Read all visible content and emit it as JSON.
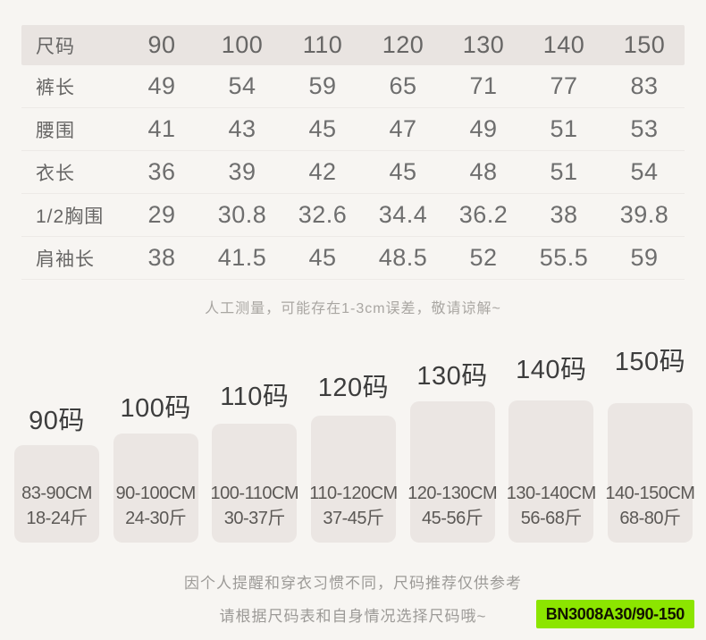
{
  "colors": {
    "page_background": "#f7f5f2",
    "table_header_background": "#e9e4e1",
    "size_block_background": "#ebe6e3",
    "badge_green": "#8ce500"
  },
  "size_table": {
    "header": {
      "label": "尺码",
      "sizes": [
        "90",
        "100",
        "110",
        "120",
        "130",
        "140",
        "150"
      ]
    },
    "rows": [
      {
        "label": "裤长",
        "values": [
          "49",
          "54",
          "59",
          "65",
          "71",
          "77",
          "83"
        ]
      },
      {
        "label": "腰围",
        "values": [
          "41",
          "43",
          "45",
          "47",
          "49",
          "51",
          "53"
        ]
      },
      {
        "label": "衣长",
        "values": [
          "36",
          "39",
          "42",
          "45",
          "48",
          "51",
          "54"
        ]
      },
      {
        "label": "1/2胸围",
        "values": [
          "29",
          "30.8",
          "32.6",
          "34.4",
          "36.2",
          "38",
          "39.8"
        ]
      },
      {
        "label": "肩袖长",
        "values": [
          "38",
          "41.5",
          "45",
          "48.5",
          "52",
          "55.5",
          "59"
        ]
      }
    ],
    "note": "人工测量，可能存在1-3cm误差，敬请谅解~"
  },
  "size_recommendations": [
    {
      "label": "90码",
      "height_range": "83-90CM",
      "weight_range": "18-24斤"
    },
    {
      "label": "100码",
      "height_range": "90-100CM",
      "weight_range": "24-30斤"
    },
    {
      "label": "110码",
      "height_range": "100-110CM",
      "weight_range": "30-37斤"
    },
    {
      "label": "120码",
      "height_range": "110-120CM",
      "weight_range": "37-45斤"
    },
    {
      "label": "130码",
      "height_range": "120-130CM",
      "weight_range": "45-56斤"
    },
    {
      "label": "140码",
      "height_range": "130-140CM",
      "weight_range": "56-68斤"
    },
    {
      "label": "150码",
      "height_range": "140-150CM",
      "weight_range": "68-80斤"
    }
  ],
  "footer": {
    "line1": "因个人提醒和穿衣习惯不同，尺码推荐仅供参考",
    "line2": "请根据尺码表和自身情况选择尺码哦~",
    "sku": "BN3008A30/90-150"
  },
  "chart_data": [
    {
      "type": "table",
      "title": "尺码表",
      "columns": [
        "尺码",
        "90",
        "100",
        "110",
        "120",
        "130",
        "140",
        "150"
      ],
      "rows": [
        [
          "裤长",
          49,
          54,
          59,
          65,
          71,
          77,
          83
        ],
        [
          "腰围",
          41,
          43,
          45,
          47,
          49,
          51,
          53
        ],
        [
          "衣长",
          36,
          39,
          42,
          45,
          48,
          51,
          54
        ],
        [
          "1/2胸围",
          29,
          30.8,
          32.6,
          34.4,
          36.2,
          38,
          39.8
        ],
        [
          "肩袖长",
          38,
          41.5,
          45,
          48.5,
          52,
          55.5,
          59
        ]
      ],
      "note": "人工测量，可能存在1-3cm误差，敬请谅解~"
    },
    {
      "type": "bar",
      "title": "尺码推荐（身高/体重范围）",
      "categories": [
        "90码",
        "100码",
        "110码",
        "120码",
        "130码",
        "140码",
        "150码"
      ],
      "series": [
        {
          "name": "height_range_cm",
          "values": [
            "83-90",
            "90-100",
            "100-110",
            "110-120",
            "120-130",
            "130-140",
            "140-150"
          ]
        },
        {
          "name": "weight_range_jin",
          "values": [
            "18-24",
            "24-30",
            "30-37",
            "37-45",
            "45-56",
            "56-68",
            "68-80"
          ]
        }
      ],
      "layout": "staircase of rounded blocks, heights increase left to right, labels above blocks"
    }
  ]
}
